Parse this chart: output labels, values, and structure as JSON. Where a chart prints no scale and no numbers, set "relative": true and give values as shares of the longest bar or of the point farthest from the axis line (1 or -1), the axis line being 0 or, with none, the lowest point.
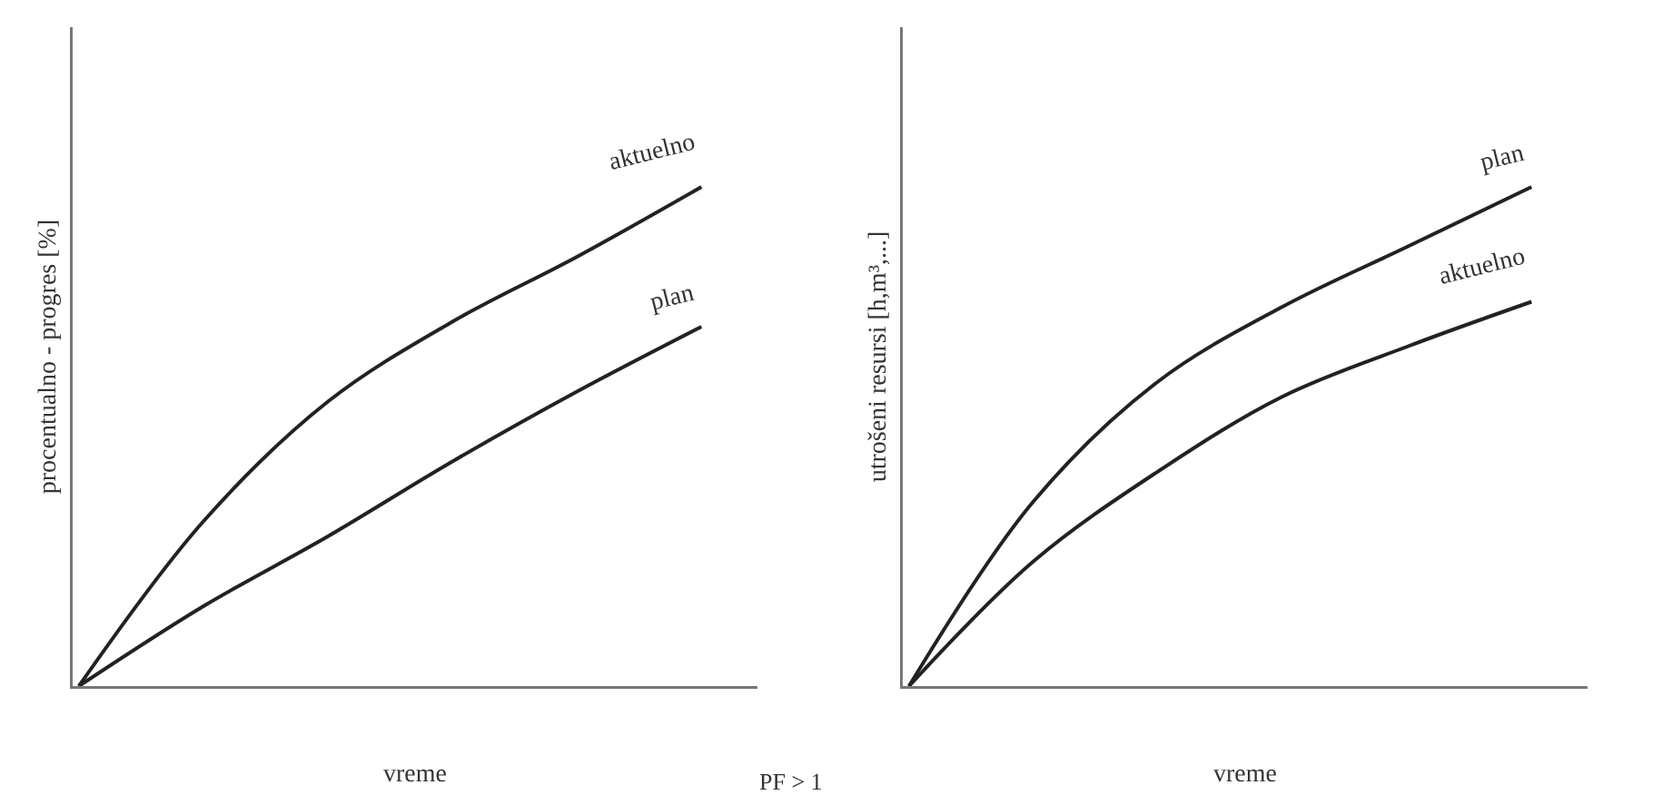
{
  "chart_data": [
    {
      "type": "line",
      "relative": true,
      "ylabel": "procentualno - progres [%]",
      "xlabel": "vreme",
      "categories": [
        null,
        null,
        null,
        null,
        null,
        null
      ],
      "legend": false,
      "line_style": "solid",
      "marker": "none",
      "annotations": [
        "PF > 1"
      ],
      "series": [
        {
          "name": "aktuelno",
          "color": "#222222",
          "values": [
            0,
            0.33,
            0.57,
            0.73,
            0.86,
            1
          ]
        },
        {
          "name": "plan",
          "color": "#222222",
          "values": [
            0,
            0.16,
            0.3,
            0.45,
            0.59,
            0.72
          ]
        }
      ]
    },
    {
      "type": "line",
      "relative": true,
      "ylabel": "utrošeni resursi [h,m³,...]",
      "xlabel": "vreme",
      "categories": [
        null,
        null,
        null,
        null,
        null,
        null
      ],
      "legend": false,
      "line_style": "solid",
      "marker": "none",
      "series": [
        {
          "name": "plan",
          "color": "#222222",
          "values": [
            0,
            0.37,
            0.61,
            0.76,
            0.88,
            1
          ]
        },
        {
          "name": "aktuelno",
          "color": "#222222",
          "values": [
            0,
            0.25,
            0.43,
            0.58,
            0.68,
            0.77
          ]
        }
      ]
    }
  ]
}
